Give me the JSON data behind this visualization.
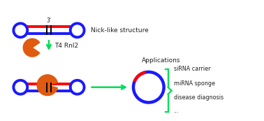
{
  "bg_color": "#ffffff",
  "blue": "#1a1aff",
  "red": "#ff0000",
  "orange": "#e05a10",
  "green": "#00dd55",
  "dark": "#222222",
  "nick_label": "Nick-like structure",
  "enzyme_label": "T4 Rnl2",
  "apps_label": "Applications",
  "app1": "siRNA carrier",
  "app2": "miRNA sponge",
  "app3": "disease diagnosis",
  "app4": "...",
  "prime3": "3'",
  "fig_width": 3.78,
  "fig_height": 1.73,
  "dpi": 100
}
